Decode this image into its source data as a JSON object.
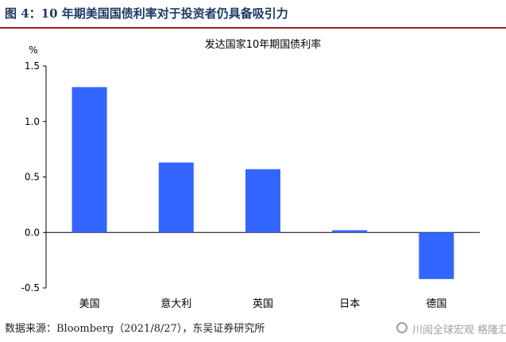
{
  "header": {
    "figure_label": "图 4：10 年期美国国债利率对于投资者仍具备吸引力"
  },
  "chart_data": {
    "type": "bar",
    "title": "发达国家10年期国债利率",
    "ylabel": "%",
    "xlabel": "",
    "categories": [
      "美国",
      "意大利",
      "英国",
      "日本",
      "德国"
    ],
    "values": [
      1.31,
      0.63,
      0.57,
      0.02,
      -0.42
    ],
    "ylim": [
      -0.5,
      1.5
    ],
    "yticks": [
      "-0.5",
      "0.0",
      "0.5",
      "1.0",
      "1.5"
    ],
    "bar_color": "#3366ff",
    "grid": false,
    "legend": "none"
  },
  "footer": {
    "source": "数据来源：Bloomberg（2021/8/27），东吴证券研究所",
    "watermark": "川阅全球宏观 格隆汇"
  }
}
